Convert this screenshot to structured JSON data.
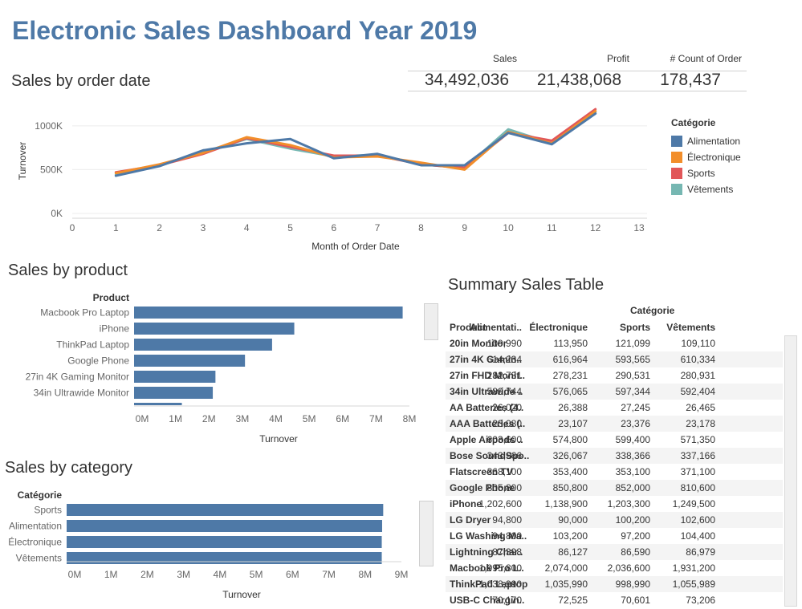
{
  "title": "Electronic Sales Dashboard Year 2019",
  "kpis": [
    {
      "label": "Sales",
      "value": "34,492,036"
    },
    {
      "label": "Profit",
      "value": "21,438,068"
    },
    {
      "label": "# Count of Order",
      "value": "178,437"
    }
  ],
  "colors": {
    "Alimentation": "#4e79a7",
    "Électronique": "#f28e2b",
    "Sports": "#e15759",
    "Vêtements": "#76b7b2",
    "bar": "#4e79a7"
  },
  "line_chart": {
    "title": "Sales by order date",
    "chart_data": {
      "type": "line",
      "xlabel": "Month of Order Date",
      "ylabel": "Turnover",
      "x": [
        1,
        2,
        3,
        4,
        5,
        6,
        7,
        8,
        9,
        10,
        11,
        12
      ],
      "xlim": [
        0,
        13
      ],
      "xticks": [
        "0",
        "1",
        "2",
        "3",
        "4",
        "5",
        "6",
        "7",
        "8",
        "9",
        "10",
        "11",
        "12",
        "13"
      ],
      "ylim": [
        0,
        1200000
      ],
      "yticks": [
        {
          "value": 0,
          "label": "0K"
        },
        {
          "value": 500000,
          "label": "500K"
        },
        {
          "value": 1000000,
          "label": "1000K"
        }
      ],
      "legend_title": "Catégorie",
      "legend_position": "right",
      "series": [
        {
          "name": "Alimentation",
          "values": [
            430000,
            540000,
            720000,
            800000,
            850000,
            630000,
            680000,
            550000,
            550000,
            920000,
            790000,
            1140000
          ]
        },
        {
          "name": "Électronique",
          "values": [
            460000,
            560000,
            690000,
            870000,
            780000,
            640000,
            650000,
            580000,
            500000,
            930000,
            800000,
            1170000
          ]
        },
        {
          "name": "Sports",
          "values": [
            470000,
            550000,
            680000,
            860000,
            760000,
            660000,
            660000,
            560000,
            520000,
            920000,
            830000,
            1190000
          ]
        },
        {
          "name": "Vêtements",
          "values": [
            440000,
            545000,
            700000,
            850000,
            740000,
            650000,
            670000,
            560000,
            520000,
            960000,
            800000,
            1160000
          ]
        }
      ]
    }
  },
  "product_chart": {
    "title": "Sales by product",
    "chart_data": {
      "type": "bar",
      "orientation": "horizontal",
      "category_header": "Product",
      "xlabel": "Turnover",
      "categories": [
        "Macbook Pro Laptop",
        "iPhone",
        "ThinkPad Laptop",
        "Google Phone",
        "27in 4K Gaming Monitor",
        "34in Ultrawide Monitor"
      ],
      "values": [
        8037600,
        4794300,
        4129959,
        3319200,
        2435097,
        2355558
      ],
      "partial_next_value": 1430000,
      "xlim": [
        0,
        8000000
      ],
      "xticks": [
        {
          "value": 0,
          "label": "0M"
        },
        {
          "value": 1000000,
          "label": "1M"
        },
        {
          "value": 2000000,
          "label": "2M"
        },
        {
          "value": 3000000,
          "label": "3M"
        },
        {
          "value": 4000000,
          "label": "4M"
        },
        {
          "value": 5000000,
          "label": "5M"
        },
        {
          "value": 6000000,
          "label": "6M"
        },
        {
          "value": 7000000,
          "label": "7M"
        },
        {
          "value": 8000000,
          "label": "8M"
        }
      ]
    }
  },
  "category_chart": {
    "title": "Sales by category",
    "chart_data": {
      "type": "bar",
      "orientation": "horizontal",
      "category_header": "Catégorie",
      "xlabel": "Turnover",
      "categories": [
        "Sports",
        "Alimentation",
        "Électronique",
        "Vêtements"
      ],
      "values": [
        8720000,
        8690000,
        8680000,
        8680000
      ],
      "xlim": [
        0,
        9000000
      ],
      "xticks": [
        {
          "value": 0,
          "label": "0M"
        },
        {
          "value": 1000000,
          "label": "1M"
        },
        {
          "value": 2000000,
          "label": "2M"
        },
        {
          "value": 3000000,
          "label": "3M"
        },
        {
          "value": 4000000,
          "label": "4M"
        },
        {
          "value": 5000000,
          "label": "5M"
        },
        {
          "value": 6000000,
          "label": "6M"
        },
        {
          "value": 7000000,
          "label": "7M"
        },
        {
          "value": 8000000,
          "label": "8M"
        },
        {
          "value": 9000000,
          "label": "9M"
        }
      ]
    }
  },
  "summary_table": {
    "title": "Summary Sales Table",
    "chart_data": {
      "type": "table",
      "column_group": "Catégorie",
      "row_header": "Product",
      "columns": [
        "Alimentati..",
        "Électronique",
        "Sports",
        "Vêtements"
      ],
      "rows": [
        {
          "product": "20in Monitor",
          "values": [
            "109,990",
            "113,950",
            "121,099",
            "109,110"
          ]
        },
        {
          "product": "27in 4K Gamin..",
          "values": [
            "614,234",
            "616,964",
            "593,565",
            "610,334"
          ]
        },
        {
          "product": "27in FHD Monit..",
          "values": [
            "282,731",
            "278,231",
            "290,531",
            "280,931"
          ]
        },
        {
          "product": "34in Ultrawide ..",
          "values": [
            "589,744",
            "576,065",
            "597,344",
            "592,404"
          ]
        },
        {
          "product": "AA Batteries (4..",
          "values": [
            "26,020",
            "26,388",
            "27,245",
            "26,465"
          ]
        },
        {
          "product": "AAA Batteries (..",
          "values": [
            "23,080",
            "23,107",
            "23,376",
            "23,178"
          ]
        },
        {
          "product": "Apple Airpods ..",
          "values": [
            "603,600",
            "574,800",
            "599,400",
            "571,350"
          ]
        },
        {
          "product": "Bose SoundSpo..",
          "values": [
            "343,966",
            "326,067",
            "338,366",
            "337,166"
          ]
        },
        {
          "product": "Flatscreen TV",
          "values": [
            "368,100",
            "353,400",
            "353,100",
            "371,100"
          ]
        },
        {
          "product": "Google Phone",
          "values": [
            "805,800",
            "850,800",
            "852,000",
            "810,600"
          ]
        },
        {
          "product": "iPhone",
          "values": [
            "1,202,600",
            "1,138,900",
            "1,203,300",
            "1,249,500"
          ]
        },
        {
          "product": "LG Dryer",
          "values": [
            "94,800",
            "90,000",
            "100,200",
            "102,600"
          ]
        },
        {
          "product": "LG Washing Ma..",
          "values": [
            "94,800",
            "103,200",
            "97,200",
            "104,400"
          ]
        },
        {
          "product": "Lightning Char..",
          "values": [
            "87,398",
            "86,127",
            "86,590",
            "86,979"
          ]
        },
        {
          "product": "Macbook Pro L..",
          "values": [
            "1,995,800",
            "2,074,000",
            "2,036,600",
            "1,931,200"
          ]
        },
        {
          "product": "ThinkPad Laptop",
          "values": [
            "1,038,990",
            "1,035,990",
            "998,990",
            "1,055,989"
          ]
        },
        {
          "product": "USB-C Chargin..",
          "values": [
            "70,170",
            "72,525",
            "70,601",
            "73,206"
          ]
        }
      ]
    }
  }
}
